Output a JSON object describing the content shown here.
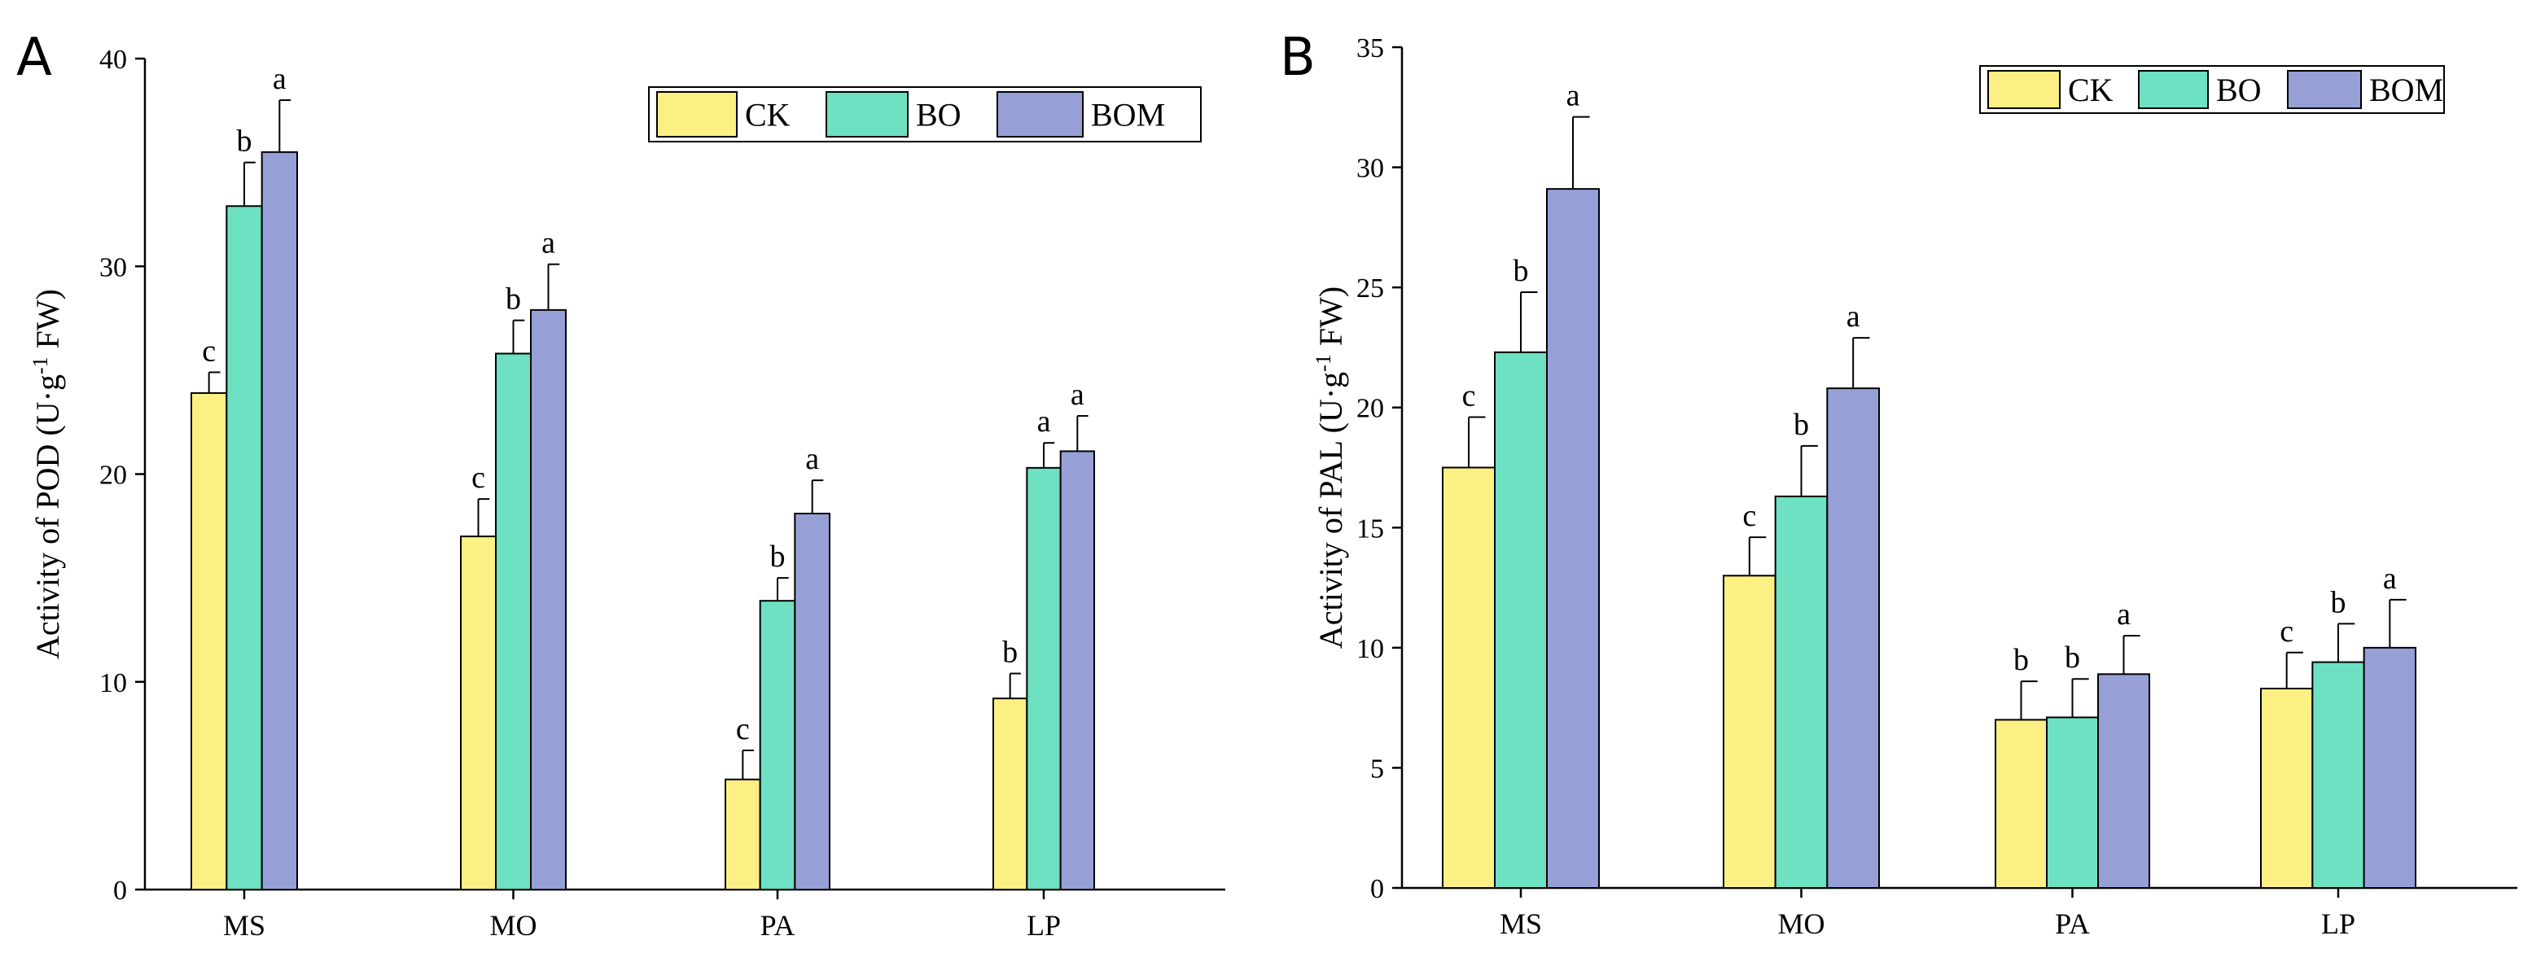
{
  "chart_data": [
    {
      "panel": "A",
      "type": "bar",
      "categories": [
        "MS",
        "MO",
        "PA",
        "LP"
      ],
      "series": [
        {
          "name": "CK",
          "color": "#FCF085",
          "values": [
            23.9,
            17.0,
            5.3,
            9.2
          ],
          "errors": [
            1.0,
            1.8,
            1.4,
            1.2
          ],
          "letters": [
            "c",
            "c",
            "c",
            "b"
          ]
        },
        {
          "name": "BO",
          "color": "#6DE1C2",
          "values": [
            32.9,
            25.8,
            13.9,
            20.3
          ],
          "errors": [
            2.1,
            1.6,
            1.1,
            1.2
          ],
          "letters": [
            "b",
            "b",
            "b",
            "a"
          ]
        },
        {
          "name": "BOM",
          "color": "#96A0D7",
          "values": [
            35.5,
            27.9,
            18.1,
            21.1
          ],
          "errors": [
            2.5,
            2.2,
            1.6,
            1.7
          ],
          "letters": [
            "a",
            "a",
            "a",
            "a"
          ]
        }
      ],
      "ylabel_pre": "Activity of POD (U·g",
      "ylabel_sup": "-1",
      "ylabel_post": " FW)",
      "xlabel": "",
      "ylim": [
        0,
        40
      ],
      "yticks": [
        0,
        10,
        20,
        30,
        40
      ],
      "legend_position": "top-right"
    },
    {
      "panel": "B",
      "type": "bar",
      "categories": [
        "MS",
        "MO",
        "PA",
        "LP"
      ],
      "series": [
        {
          "name": "CK",
          "color": "#FCF085",
          "values": [
            17.5,
            13.0,
            7.0,
            8.3
          ],
          "errors": [
            2.1,
            1.6,
            1.6,
            1.5
          ],
          "letters": [
            "c",
            "c",
            "b",
            "c"
          ]
        },
        {
          "name": "BO",
          "color": "#6DE1C2",
          "values": [
            22.3,
            16.3,
            7.1,
            9.4
          ],
          "errors": [
            2.5,
            2.1,
            1.6,
            1.6
          ],
          "letters": [
            "b",
            "b",
            "b",
            "b"
          ]
        },
        {
          "name": "BOM",
          "color": "#96A0D7",
          "values": [
            29.1,
            20.8,
            8.9,
            10.0
          ],
          "errors": [
            3.0,
            2.1,
            1.6,
            2.0
          ],
          "letters": [
            "a",
            "a",
            "a",
            "a"
          ]
        }
      ],
      "ylabel_pre": "Activity of PAL (U·g",
      "ylabel_sup": "-1",
      "ylabel_post": " FW)",
      "xlabel": "",
      "ylim": [
        0,
        35
      ],
      "yticks": [
        0,
        5,
        10,
        15,
        20,
        25,
        30,
        35
      ],
      "legend_position": "top-right"
    }
  ],
  "panel_labels": {
    "a": "A",
    "b": "B"
  }
}
